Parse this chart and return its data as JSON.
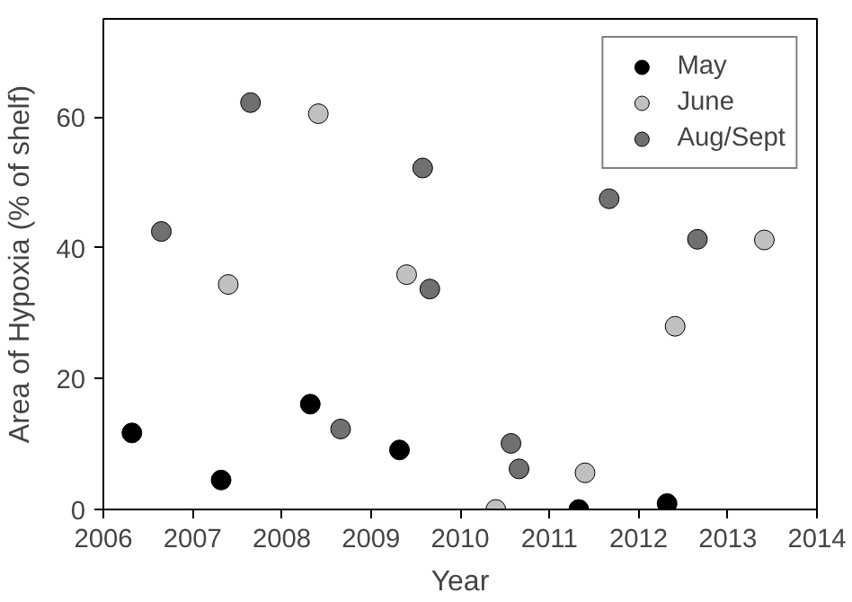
{
  "chart_data": {
    "type": "scatter",
    "xlabel": "Year",
    "ylabel": "Area of Hypoxia (% of shelf)",
    "xlim": [
      2006,
      2014
    ],
    "xticks": [
      2006,
      2007,
      2008,
      2009,
      2010,
      2011,
      2012,
      2013,
      2014
    ],
    "ylim": [
      0,
      75
    ],
    "yticks": [
      0,
      20,
      40,
      60
    ],
    "grid": false,
    "legend": "top right",
    "marker": "circle",
    "series": [
      {
        "name": "May",
        "color": "#000000",
        "x": [
          2006.32,
          2007.32,
          2008.32,
          2009.32,
          2011.33,
          2012.32
        ],
        "values": [
          11.7,
          4.5,
          16.1,
          9.1,
          0,
          0.9
        ]
      },
      {
        "name": "June",
        "color": "#c0c0c0",
        "x": [
          2007.4,
          2008.41,
          2009.4,
          2010.4,
          2011.4,
          2012.41,
          2013.41
        ],
        "values": [
          34.4,
          60.5,
          35.9,
          0,
          5.6,
          28.0,
          41.2
        ]
      },
      {
        "name": "Aug/Sept",
        "color": "#707070",
        "x": [
          2006.65,
          2007.65,
          2008.66,
          2009.58,
          2009.66,
          2010.57,
          2010.66,
          2011.67,
          2012.66
        ],
        "values": [
          42.5,
          62.2,
          12.3,
          52.2,
          33.7,
          10.1,
          6.2,
          47.5,
          41.3
        ]
      }
    ]
  }
}
